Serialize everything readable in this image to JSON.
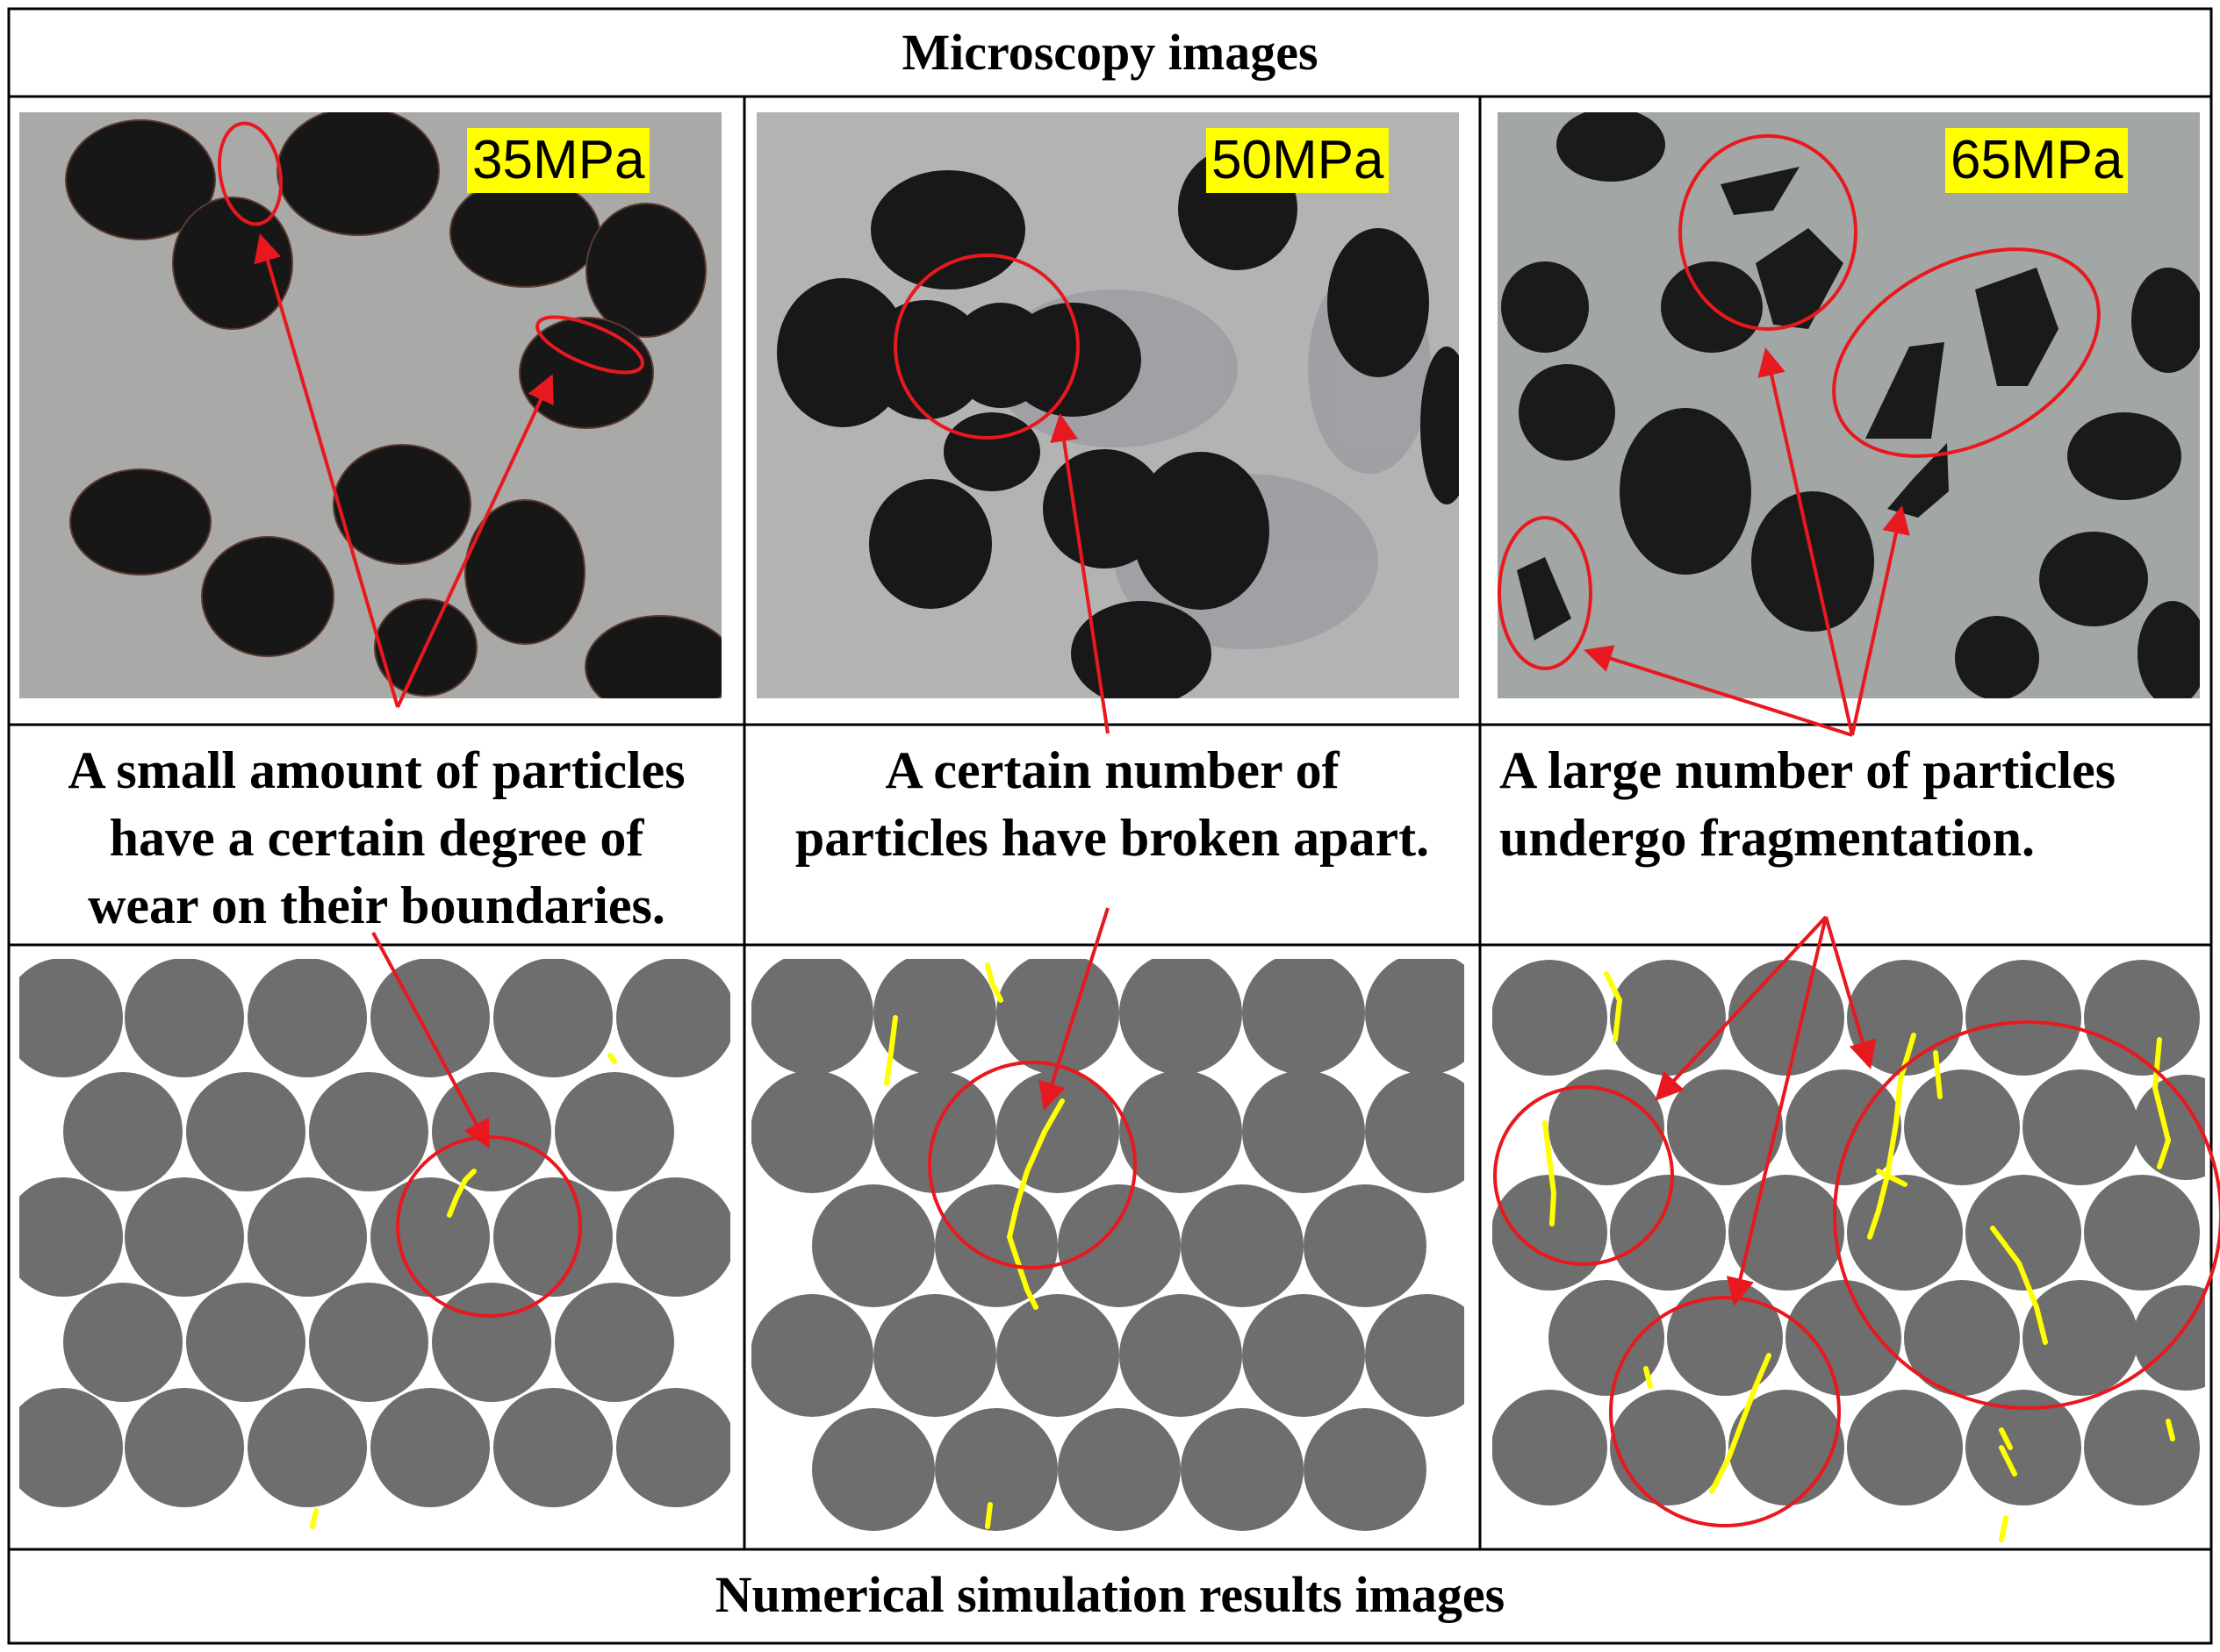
{
  "header": {
    "title": "Microscopy images"
  },
  "footer": {
    "title": "Numerical simulation results images"
  },
  "panels": [
    {
      "pressure": "35MPa",
      "caption_lines": [
        "A small amount of particles",
        "have a certain degree of",
        "wear on their boundaries."
      ]
    },
    {
      "pressure": "50MPa",
      "caption_lines": [
        "A certain number of",
        "particles have broken apart."
      ]
    },
    {
      "pressure": "65MPa",
      "caption_lines": [
        "A large number of particles",
        "undergo fragmentation."
      ]
    }
  ],
  "colors": {
    "annotation": "#e8191e",
    "microscope_background": "#a9aaa8",
    "particle_dark": "#171717",
    "simulation_particle": "#6e6e6e",
    "crack": "#ffff00",
    "label_highlight": "#ffff00"
  }
}
